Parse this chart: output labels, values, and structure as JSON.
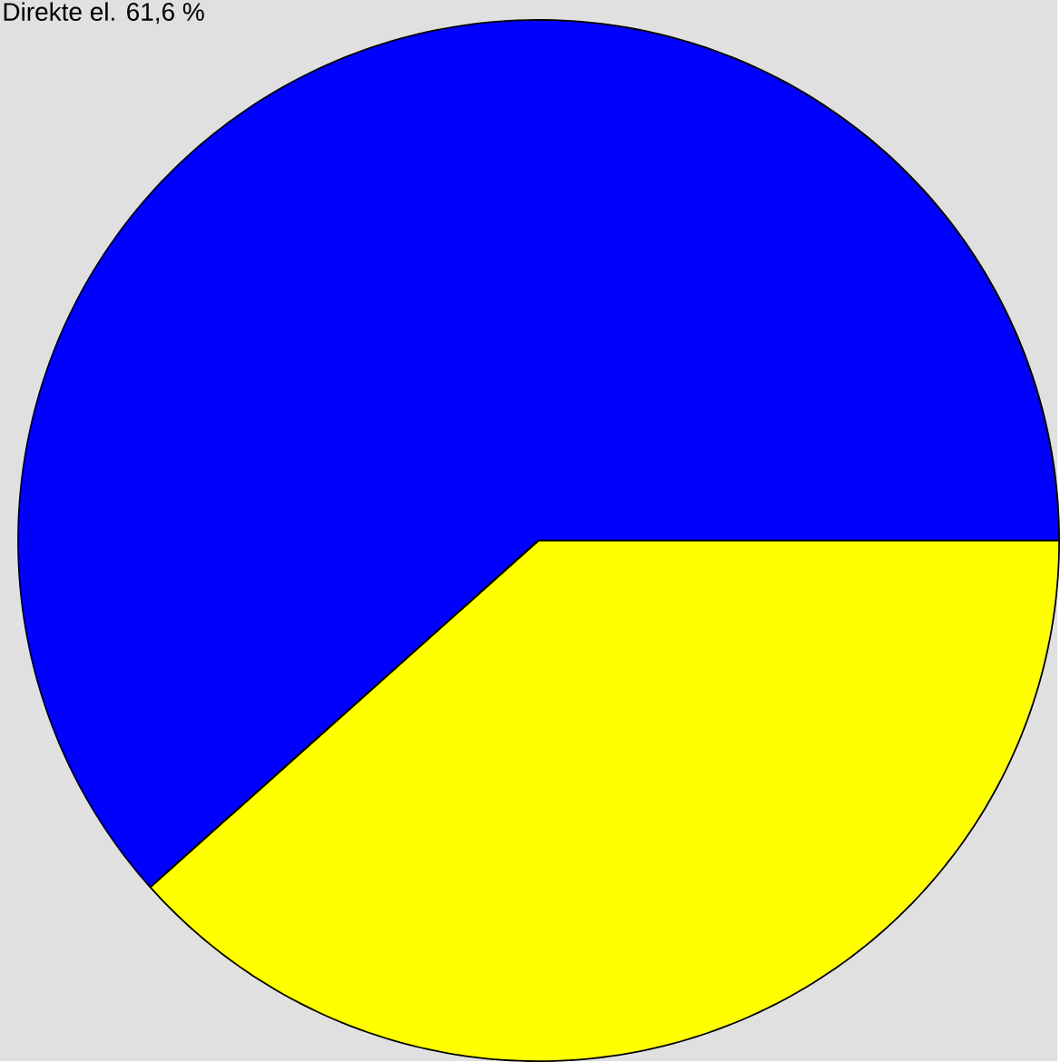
{
  "chart_data": {
    "type": "pie",
    "categories": [
      "Direkte el.",
      null
    ],
    "values": [
      61.6,
      38.4
    ],
    "colors": [
      "#0000ff",
      "#ffff00"
    ],
    "value_labels": [
      "61,6 %",
      null
    ]
  }
}
